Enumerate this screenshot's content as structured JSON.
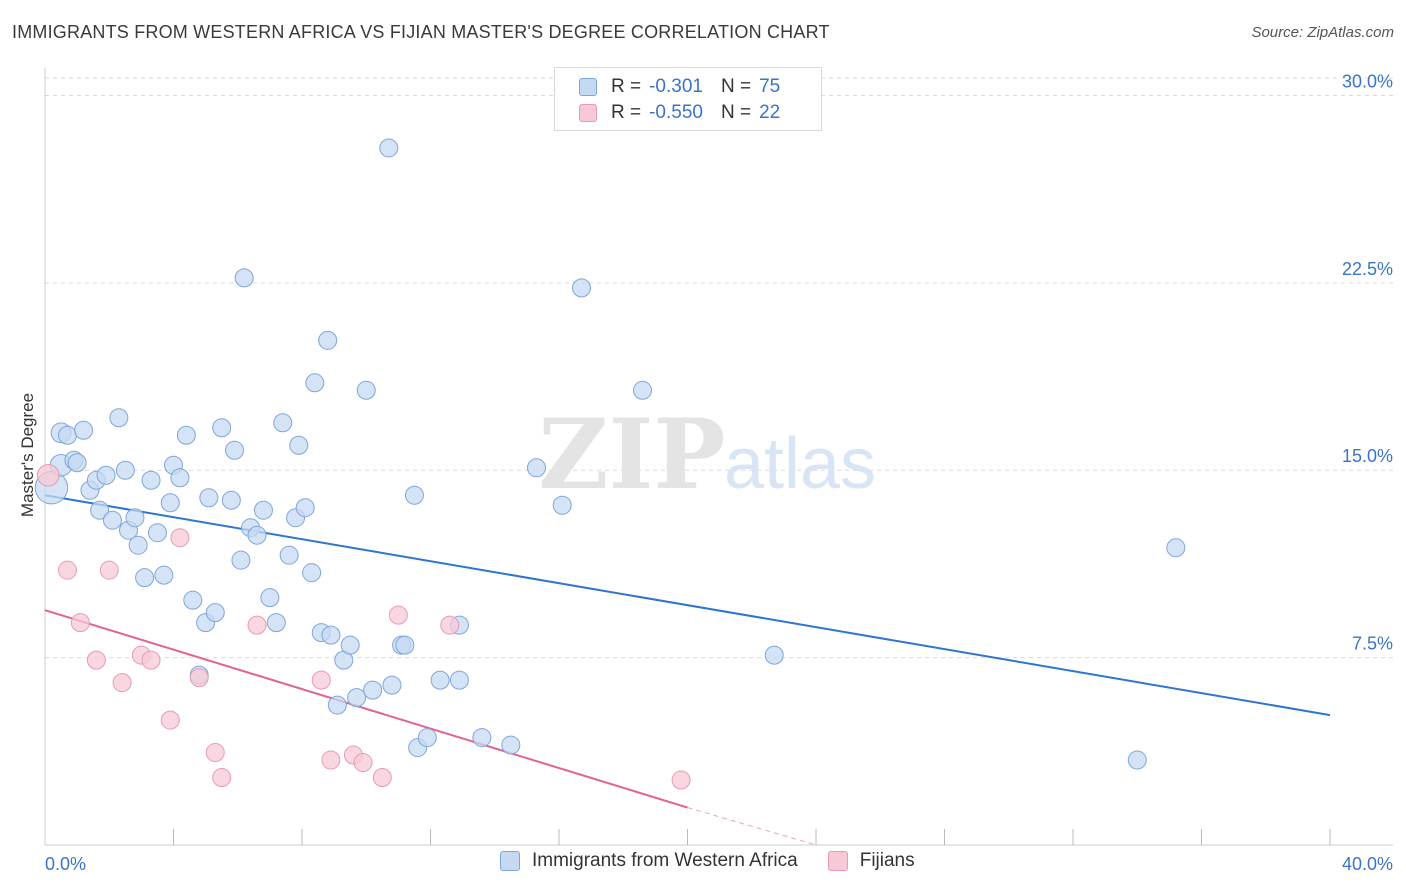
{
  "header": {
    "title": "IMMIGRANTS FROM WESTERN AFRICA VS FIJIAN MASTER'S DEGREE CORRELATION CHART",
    "source": "Source: ZipAtlas.com"
  },
  "watermark": {
    "zip": "ZIP",
    "atlas": "atlas"
  },
  "colors": {
    "blue_fill": "#c5d9f3",
    "blue_stroke": "#7ea6d8",
    "blue_line": "#2f74cf",
    "pink_fill": "#f7c9d6",
    "pink_stroke": "#e89ab2",
    "pink_line": "#e0648c",
    "axis_text": "#3a74c8",
    "grid": "#d9d9d9"
  },
  "legend": {
    "rows": [
      {
        "r_label": "R =",
        "r_value": "-0.301",
        "n_label": "N =",
        "n_value": "75"
      },
      {
        "r_label": "R =",
        "r_value": "-0.550",
        "n_label": "N =",
        "n_value": "22"
      }
    ]
  },
  "bottom_legend": {
    "items": [
      "Immigrants from Western Africa",
      "Fijians"
    ]
  },
  "chart_data": {
    "type": "scatter",
    "title": "IMMIGRANTS FROM WESTERN AFRICA VS FIJIAN MASTER'S DEGREE CORRELATION CHART",
    "xlabel": "",
    "ylabel": "Master's Degree",
    "xlim": [
      0,
      40
    ],
    "ylim": [
      0,
      30.7
    ],
    "x_tick_labels": [
      "0.0%",
      "40.0%"
    ],
    "y_ticks": [
      7.5,
      15.0,
      22.5,
      30.0
    ],
    "y_tick_labels": [
      "7.5%",
      "15.0%",
      "22.5%",
      "30.0%"
    ],
    "grid": true,
    "legend_position": "top-center",
    "series": [
      {
        "name": "Immigrants from Western Africa",
        "color": "#c5d9f3",
        "r": -0.301,
        "n": 75,
        "trend": {
          "x": [
            0,
            40
          ],
          "y": [
            14.0,
            5.2
          ]
        },
        "points": [
          {
            "x": 0.2,
            "y": 14.3,
            "s": 1.8
          },
          {
            "x": 0.5,
            "y": 15.2,
            "s": 1.2
          },
          {
            "x": 0.5,
            "y": 16.5,
            "s": 1.1
          },
          {
            "x": 0.7,
            "y": 16.4,
            "s": 1.0
          },
          {
            "x": 0.9,
            "y": 15.4,
            "s": 1.0
          },
          {
            "x": 1.0,
            "y": 15.3,
            "s": 1.0
          },
          {
            "x": 1.2,
            "y": 16.6,
            "s": 1.0
          },
          {
            "x": 1.4,
            "y": 14.2,
            "s": 1.0
          },
          {
            "x": 1.6,
            "y": 14.6,
            "s": 1.0
          },
          {
            "x": 1.7,
            "y": 13.4,
            "s": 1.0
          },
          {
            "x": 1.9,
            "y": 14.8,
            "s": 1.0
          },
          {
            "x": 2.1,
            "y": 13.0,
            "s": 1.0
          },
          {
            "x": 2.3,
            "y": 17.1,
            "s": 1.0
          },
          {
            "x": 2.5,
            "y": 15.0,
            "s": 1.0
          },
          {
            "x": 2.6,
            "y": 12.6,
            "s": 1.0
          },
          {
            "x": 2.8,
            "y": 13.1,
            "s": 1.0
          },
          {
            "x": 2.9,
            "y": 12.0,
            "s": 1.0
          },
          {
            "x": 3.1,
            "y": 10.7,
            "s": 1.0
          },
          {
            "x": 3.3,
            "y": 14.6,
            "s": 1.0
          },
          {
            "x": 3.5,
            "y": 12.5,
            "s": 1.0
          },
          {
            "x": 3.7,
            "y": 10.8,
            "s": 1.0
          },
          {
            "x": 3.9,
            "y": 13.7,
            "s": 1.0
          },
          {
            "x": 4.0,
            "y": 15.2,
            "s": 1.0
          },
          {
            "x": 4.2,
            "y": 14.7,
            "s": 1.0
          },
          {
            "x": 4.4,
            "y": 16.4,
            "s": 1.0
          },
          {
            "x": 4.6,
            "y": 9.8,
            "s": 1.0
          },
          {
            "x": 4.8,
            "y": 6.8,
            "s": 1.0
          },
          {
            "x": 5.0,
            "y": 8.9,
            "s": 1.0
          },
          {
            "x": 5.1,
            "y": 13.9,
            "s": 1.0
          },
          {
            "x": 5.3,
            "y": 9.3,
            "s": 1.0
          },
          {
            "x": 5.5,
            "y": 16.7,
            "s": 1.0
          },
          {
            "x": 5.8,
            "y": 13.8,
            "s": 1.0
          },
          {
            "x": 5.9,
            "y": 15.8,
            "s": 1.0
          },
          {
            "x": 6.1,
            "y": 11.4,
            "s": 1.0
          },
          {
            "x": 6.2,
            "y": 22.7,
            "s": 1.0
          },
          {
            "x": 6.4,
            "y": 12.7,
            "s": 1.0
          },
          {
            "x": 6.6,
            "y": 12.4,
            "s": 1.0
          },
          {
            "x": 6.8,
            "y": 13.4,
            "s": 1.0
          },
          {
            "x": 7.0,
            "y": 9.9,
            "s": 1.0
          },
          {
            "x": 7.2,
            "y": 8.9,
            "s": 1.0
          },
          {
            "x": 7.4,
            "y": 16.9,
            "s": 1.0
          },
          {
            "x": 7.6,
            "y": 11.6,
            "s": 1.0
          },
          {
            "x": 7.8,
            "y": 13.1,
            "s": 1.0
          },
          {
            "x": 7.9,
            "y": 16.0,
            "s": 1.0
          },
          {
            "x": 8.1,
            "y": 13.5,
            "s": 1.0
          },
          {
            "x": 8.3,
            "y": 10.9,
            "s": 1.0
          },
          {
            "x": 8.4,
            "y": 18.5,
            "s": 1.0
          },
          {
            "x": 8.6,
            "y": 8.5,
            "s": 1.0
          },
          {
            "x": 8.8,
            "y": 20.2,
            "s": 1.0
          },
          {
            "x": 8.9,
            "y": 8.4,
            "s": 1.0
          },
          {
            "x": 9.1,
            "y": 5.6,
            "s": 1.0
          },
          {
            "x": 9.3,
            "y": 7.4,
            "s": 1.0
          },
          {
            "x": 9.5,
            "y": 8.0,
            "s": 1.0
          },
          {
            "x": 9.7,
            "y": 5.9,
            "s": 1.0
          },
          {
            "x": 10.0,
            "y": 18.2,
            "s": 1.0
          },
          {
            "x": 10.2,
            "y": 6.2,
            "s": 1.0
          },
          {
            "x": 10.7,
            "y": 27.9,
            "s": 1.0
          },
          {
            "x": 10.8,
            "y": 6.4,
            "s": 1.0
          },
          {
            "x": 11.1,
            "y": 8.0,
            "s": 1.0
          },
          {
            "x": 11.2,
            "y": 8.0,
            "s": 1.0
          },
          {
            "x": 11.5,
            "y": 14.0,
            "s": 1.0
          },
          {
            "x": 11.6,
            "y": 3.9,
            "s": 1.0
          },
          {
            "x": 11.9,
            "y": 4.3,
            "s": 1.0
          },
          {
            "x": 12.3,
            "y": 6.6,
            "s": 1.0
          },
          {
            "x": 12.9,
            "y": 6.6,
            "s": 1.0
          },
          {
            "x": 12.9,
            "y": 8.8,
            "s": 1.0
          },
          {
            "x": 13.6,
            "y": 4.3,
            "s": 1.0
          },
          {
            "x": 14.5,
            "y": 4.0,
            "s": 1.0
          },
          {
            "x": 15.3,
            "y": 15.1,
            "s": 1.0
          },
          {
            "x": 16.1,
            "y": 13.6,
            "s": 1.0
          },
          {
            "x": 16.7,
            "y": 22.3,
            "s": 1.0
          },
          {
            "x": 18.6,
            "y": 18.2,
            "s": 1.0
          },
          {
            "x": 22.7,
            "y": 7.6,
            "s": 1.0
          },
          {
            "x": 34.0,
            "y": 3.4,
            "s": 1.0
          },
          {
            "x": 35.2,
            "y": 11.9,
            "s": 1.0
          }
        ]
      },
      {
        "name": "Fijians",
        "color": "#f7c9d6",
        "r": -0.55,
        "n": 22,
        "trend": {
          "x": [
            0,
            20
          ],
          "y": [
            9.4,
            1.5
          ]
        },
        "trend_dashed_extension": {
          "x": [
            20,
            24
          ],
          "y": [
            1.5,
            0
          ]
        },
        "points": [
          {
            "x": 0.1,
            "y": 14.8,
            "s": 1.2
          },
          {
            "x": 0.7,
            "y": 11.0,
            "s": 1.0
          },
          {
            "x": 1.1,
            "y": 8.9,
            "s": 1.0
          },
          {
            "x": 1.6,
            "y": 7.4,
            "s": 1.0
          },
          {
            "x": 2.0,
            "y": 11.0,
            "s": 1.0
          },
          {
            "x": 2.4,
            "y": 6.5,
            "s": 1.0
          },
          {
            "x": 3.0,
            "y": 7.6,
            "s": 1.0
          },
          {
            "x": 3.3,
            "y": 7.4,
            "s": 1.0
          },
          {
            "x": 3.9,
            "y": 5.0,
            "s": 1.0
          },
          {
            "x": 4.2,
            "y": 12.3,
            "s": 1.0
          },
          {
            "x": 4.8,
            "y": 6.7,
            "s": 1.0
          },
          {
            "x": 5.3,
            "y": 3.7,
            "s": 1.0
          },
          {
            "x": 5.5,
            "y": 2.7,
            "s": 1.0
          },
          {
            "x": 6.6,
            "y": 8.8,
            "s": 1.0
          },
          {
            "x": 8.6,
            "y": 6.6,
            "s": 1.0
          },
          {
            "x": 8.9,
            "y": 3.4,
            "s": 1.0
          },
          {
            "x": 9.6,
            "y": 3.6,
            "s": 1.0
          },
          {
            "x": 9.9,
            "y": 3.3,
            "s": 1.0
          },
          {
            "x": 10.5,
            "y": 2.7,
            "s": 1.0
          },
          {
            "x": 11.0,
            "y": 9.2,
            "s": 1.0
          },
          {
            "x": 12.6,
            "y": 8.8,
            "s": 1.0
          },
          {
            "x": 19.8,
            "y": 2.6,
            "s": 1.0
          }
        ]
      }
    ]
  }
}
